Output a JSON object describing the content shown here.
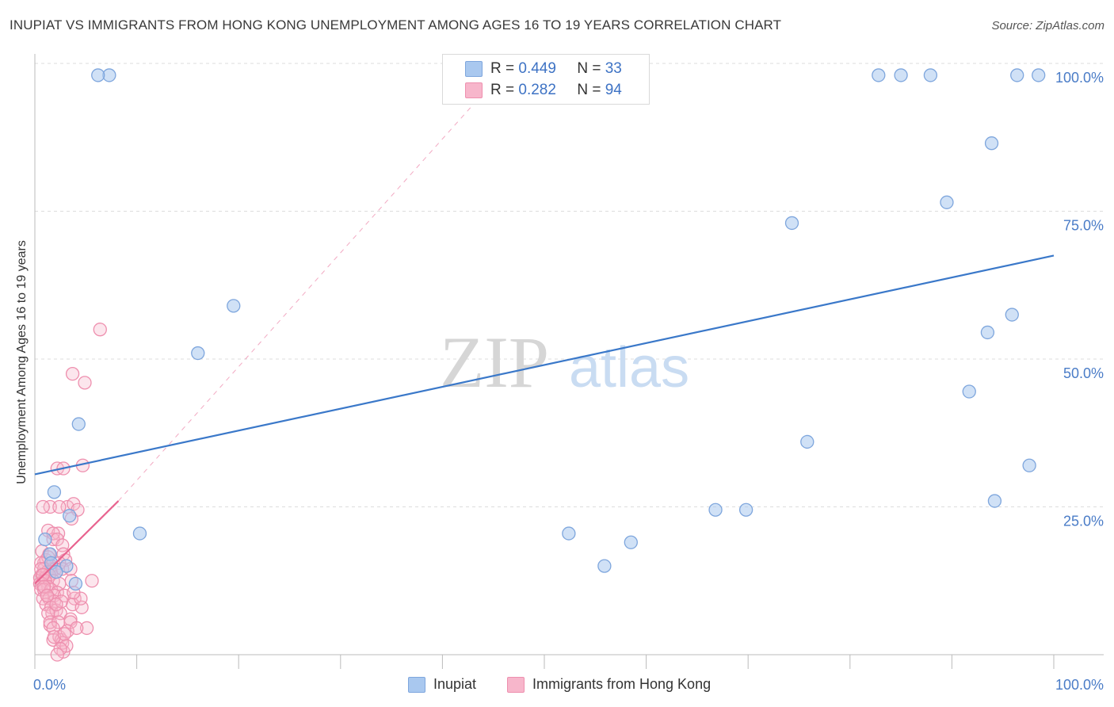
{
  "title": "INUPIAT VS IMMIGRANTS FROM HONG KONG UNEMPLOYMENT AMONG AGES 16 TO 19 YEARS CORRELATION CHART",
  "source": "Source: ZipAtlas.com",
  "watermark": {
    "zip": "ZIP",
    "atlas": "atlas"
  },
  "legend": {
    "rows": [
      {
        "r_label": "R =",
        "r_value": "0.449",
        "n_label": "N =",
        "n_value": "33"
      },
      {
        "r_label": "R =",
        "r_value": "0.282",
        "n_label": "N =",
        "n_value": "94"
      }
    ]
  },
  "bottom_legend": {
    "series1": "Inupiat",
    "series2": "Immigrants from Hong Kong"
  },
  "colors": {
    "inupiat_fill": "#a9c8ef",
    "inupiat_stroke": "#7ea6dd",
    "inupiat_line": "#3a78c9",
    "hk_fill": "#f7b6cb",
    "hk_stroke": "#ee8fae",
    "hk_line": "#e8638f",
    "axis_text": "#4a7cc7",
    "grid": "#dddddd"
  },
  "chart_data": {
    "type": "scatter",
    "title": "INUPIAT VS IMMIGRANTS FROM HONG KONG UNEMPLOYMENT AMONG AGES 16 TO 19 YEARS CORRELATION CHART",
    "xlabel": "",
    "ylabel": "Unemployment Among Ages 16 to 19 years",
    "xlim": [
      0,
      100
    ],
    "ylim": [
      0,
      100
    ],
    "x_tick_labels": [
      "0.0%",
      "100.0%"
    ],
    "y_tick_labels": [
      "25.0%",
      "50.0%",
      "75.0%",
      "100.0%"
    ],
    "y_ticks": [
      25,
      50,
      75,
      100
    ],
    "grid": true,
    "legend_position": "top-center",
    "series": [
      {
        "name": "Inupiat",
        "r": 0.449,
        "n": 33,
        "trend": {
          "x": [
            0,
            100
          ],
          "y": [
            30.5,
            67.5
          ]
        },
        "points": [
          [
            7.3,
            98
          ],
          [
            6.2,
            98
          ],
          [
            19.5,
            59
          ],
          [
            16,
            51
          ],
          [
            4.3,
            39
          ],
          [
            1.9,
            27.5
          ],
          [
            3.4,
            23.5
          ],
          [
            1,
            19.5
          ],
          [
            1.5,
            17
          ],
          [
            10.3,
            20.5
          ],
          [
            4,
            12
          ],
          [
            82.8,
            98
          ],
          [
            85,
            98
          ],
          [
            87.9,
            98
          ],
          [
            96.4,
            98
          ],
          [
            98.5,
            98
          ],
          [
            93.9,
            86.5
          ],
          [
            89.5,
            76.5
          ],
          [
            74.3,
            73
          ],
          [
            95.9,
            57.5
          ],
          [
            93.5,
            54.5
          ],
          [
            91.7,
            44.5
          ],
          [
            75.8,
            36
          ],
          [
            97.6,
            32
          ],
          [
            94.2,
            26
          ],
          [
            66.8,
            24.5
          ],
          [
            69.8,
            24.5
          ],
          [
            52.4,
            20.5
          ],
          [
            58.5,
            19
          ],
          [
            55.9,
            15
          ],
          [
            1.6,
            15.5
          ],
          [
            3.1,
            15
          ],
          [
            2.1,
            14
          ]
        ]
      },
      {
        "name": "Immigrants from Hong Kong",
        "r": 0.282,
        "n": 94,
        "trend": {
          "x": [
            0,
            8.2
          ],
          "y": [
            12,
            26
          ]
        },
        "trend_extension": {
          "x": [
            8.2,
            43
          ],
          "y": [
            26,
            93
          ]
        },
        "points": [
          [
            6.4,
            55
          ],
          [
            3.7,
            47.5
          ],
          [
            4.9,
            46
          ],
          [
            4.7,
            32
          ],
          [
            2.2,
            31.5
          ],
          [
            2.8,
            31.5
          ],
          [
            1.5,
            25
          ],
          [
            3.2,
            25
          ],
          [
            3.8,
            25.5
          ],
          [
            4.2,
            24.5
          ],
          [
            0.8,
            25
          ],
          [
            2.4,
            25
          ],
          [
            3.6,
            23
          ],
          [
            1.3,
            21
          ],
          [
            2.3,
            20.5
          ],
          [
            1.8,
            19.5
          ],
          [
            1.8,
            20.5
          ],
          [
            2.2,
            19.5
          ],
          [
            2.7,
            18.5
          ],
          [
            0.7,
            17.5
          ],
          [
            1.4,
            17
          ],
          [
            2.8,
            17
          ],
          [
            3,
            16
          ],
          [
            2.4,
            15.5
          ],
          [
            0.9,
            15.5
          ],
          [
            1.1,
            16
          ],
          [
            1.3,
            16.5
          ],
          [
            0.6,
            15.5
          ],
          [
            1.6,
            15
          ],
          [
            2,
            14.5
          ],
          [
            0.7,
            13.5
          ],
          [
            0.9,
            14.5
          ],
          [
            1.2,
            14
          ],
          [
            1.6,
            14
          ],
          [
            2.1,
            14
          ],
          [
            2.7,
            14.5
          ],
          [
            3.5,
            14.5
          ],
          [
            0.5,
            13
          ],
          [
            1,
            13
          ],
          [
            1.4,
            13.5
          ],
          [
            1.8,
            12.5
          ],
          [
            0.5,
            12
          ],
          [
            1,
            12.5
          ],
          [
            0.7,
            12
          ],
          [
            1.3,
            11.5
          ],
          [
            2.4,
            12
          ],
          [
            3.6,
            12.5
          ],
          [
            0.6,
            11
          ],
          [
            0.9,
            11
          ],
          [
            1.6,
            11
          ],
          [
            2.2,
            10.5
          ],
          [
            1.2,
            10
          ],
          [
            1.9,
            10
          ],
          [
            2.9,
            10
          ],
          [
            0.8,
            9.5
          ],
          [
            1.4,
            9.5
          ],
          [
            1.9,
            9
          ],
          [
            3.9,
            9.5
          ],
          [
            1.1,
            8.5
          ],
          [
            1.6,
            8
          ],
          [
            1.7,
            7
          ],
          [
            2.1,
            7.5
          ],
          [
            2.5,
            7
          ],
          [
            3.7,
            8.5
          ],
          [
            4.6,
            8
          ],
          [
            0.6,
            14.5
          ],
          [
            0.8,
            13.5
          ],
          [
            4.5,
            9.5
          ],
          [
            3.8,
            10.5
          ],
          [
            2.6,
            9
          ],
          [
            1.3,
            7
          ],
          [
            1.5,
            5
          ],
          [
            1.5,
            5.5
          ],
          [
            3.5,
            6
          ],
          [
            2.3,
            5.5
          ],
          [
            1.8,
            4.5
          ],
          [
            3.5,
            5.5
          ],
          [
            5.1,
            4.5
          ],
          [
            1.8,
            2.5
          ],
          [
            2.4,
            3
          ],
          [
            2.6,
            2.5
          ],
          [
            2.8,
            0.5
          ],
          [
            2.7,
            2
          ],
          [
            3.1,
            1.5
          ],
          [
            2.5,
            1
          ],
          [
            2.2,
            0
          ],
          [
            3.2,
            4
          ],
          [
            1.9,
            3
          ],
          [
            2.9,
            3.5
          ],
          [
            4.1,
            4.5
          ],
          [
            5.6,
            12.5
          ],
          [
            0.9,
            11.5
          ],
          [
            1.2,
            10
          ],
          [
            2.1,
            8.5
          ]
        ]
      }
    ]
  }
}
